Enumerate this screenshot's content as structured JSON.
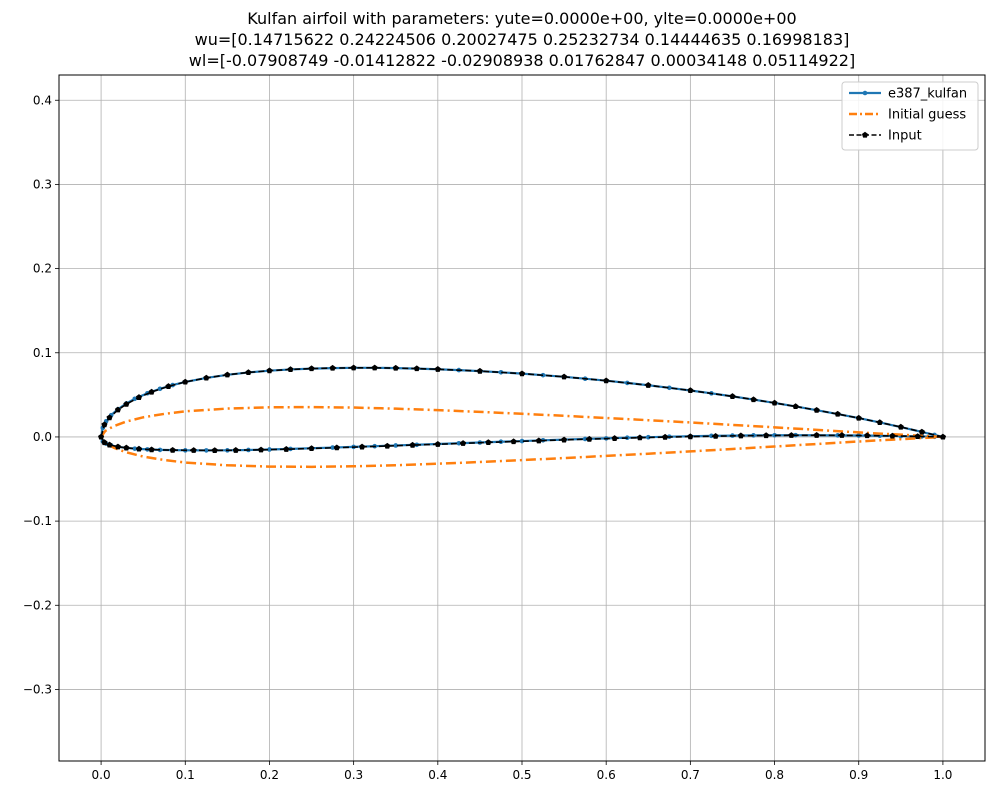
{
  "chart_data": {
    "type": "line",
    "title_lines": [
      "Kulfan airfoil with parameters: yute=0.0000e+00, ylte=0.0000e+00",
      "wu=[0.14715622 0.24224506 0.20027475 0.25232734 0.14444635 0.16998183]",
      "wl=[-0.07908749 -0.01412822 -0.02908938  0.01762847  0.00034148  0.05114922]"
    ],
    "xlabel": "",
    "ylabel": "",
    "xlim": [
      -0.05,
      1.05
    ],
    "ylim": [
      -0.385,
      0.43
    ],
    "x_ticks": [
      0.0,
      0.1,
      0.2,
      0.3,
      0.4,
      0.5,
      0.6,
      0.7,
      0.8,
      0.9,
      1.0
    ],
    "x_tick_labels": [
      "0.0",
      "0.1",
      "0.2",
      "0.3",
      "0.4",
      "0.5",
      "0.6",
      "0.7",
      "0.8",
      "0.9",
      "1.0"
    ],
    "y_ticks": [
      -0.3,
      -0.2,
      -0.1,
      0.0,
      0.1,
      0.2,
      0.3,
      0.4
    ],
    "y_tick_labels": [
      "−0.3",
      "−0.2",
      "−0.1",
      "0.0",
      "0.1",
      "0.2",
      "0.3",
      "0.4"
    ],
    "grid": true,
    "legend_position": "top-right",
    "series": [
      {
        "name": "e387_kulfan",
        "color": "#1f77b4",
        "style": "solid-line-with-dot-markers",
        "x": [
          1.0,
          0.99,
          0.975,
          0.95,
          0.925,
          0.9,
          0.875,
          0.85,
          0.825,
          0.8,
          0.775,
          0.75,
          0.725,
          0.7,
          0.675,
          0.65,
          0.625,
          0.6,
          0.575,
          0.55,
          0.525,
          0.5,
          0.475,
          0.45,
          0.425,
          0.4,
          0.375,
          0.35,
          0.325,
          0.3,
          0.275,
          0.25,
          0.225,
          0.2,
          0.175,
          0.15,
          0.125,
          0.1,
          0.085,
          0.07,
          0.055,
          0.04,
          0.03,
          0.02,
          0.012,
          0.006,
          0.002,
          0.0,
          0.002,
          0.006,
          0.012,
          0.02,
          0.03,
          0.04,
          0.055,
          0.07,
          0.085,
          0.1,
          0.125,
          0.15,
          0.175,
          0.2,
          0.225,
          0.25,
          0.275,
          0.3,
          0.325,
          0.35,
          0.375,
          0.4,
          0.425,
          0.45,
          0.475,
          0.5,
          0.525,
          0.55,
          0.575,
          0.6,
          0.625,
          0.65,
          0.675,
          0.7,
          0.725,
          0.75,
          0.775,
          0.8,
          0.825,
          0.85,
          0.875,
          0.9,
          0.925,
          0.95,
          0.975,
          0.99,
          1.0
        ],
        "y": [
          0.0,
          0.0024,
          0.006,
          0.0118,
          0.0172,
          0.0224,
          0.0272,
          0.0318,
          0.0362,
          0.0404,
          0.0444,
          0.0482,
          0.0518,
          0.0552,
          0.0584,
          0.0614,
          0.0642,
          0.0668,
          0.0692,
          0.0714,
          0.0734,
          0.0752,
          0.0768,
          0.0782,
          0.0794,
          0.0804,
          0.0812,
          0.0818,
          0.0821,
          0.0821,
          0.0818,
          0.0812,
          0.0802,
          0.0787,
          0.0766,
          0.0738,
          0.0701,
          0.0653,
          0.0616,
          0.0572,
          0.0519,
          0.0453,
          0.0398,
          0.0329,
          0.0259,
          0.0186,
          0.0108,
          0.0,
          -0.0052,
          -0.0079,
          -0.0101,
          -0.0117,
          -0.013,
          -0.0139,
          -0.0148,
          -0.0154,
          -0.0157,
          -0.0159,
          -0.016,
          -0.0159,
          -0.0155,
          -0.0149,
          -0.0142,
          -0.0134,
          -0.0126,
          -0.0118,
          -0.011,
          -0.0101,
          -0.0093,
          -0.0084,
          -0.0075,
          -0.0066,
          -0.0057,
          -0.0049,
          -0.004,
          -0.0032,
          -0.0024,
          -0.0017,
          -0.0009,
          -0.0003,
          0.0003,
          0.0008,
          0.0013,
          0.0016,
          0.0019,
          0.002,
          0.0021,
          0.002,
          0.0019,
          0.0017,
          0.0014,
          0.001,
          0.0006,
          0.0002,
          0.0
        ]
      },
      {
        "name": "Initial guess",
        "color": "#ff7f0e",
        "style": "dash-dot-line",
        "x": [
          1.0,
          0.975,
          0.95,
          0.925,
          0.9,
          0.85,
          0.8,
          0.75,
          0.7,
          0.65,
          0.6,
          0.55,
          0.5,
          0.45,
          0.4,
          0.35,
          0.3,
          0.25,
          0.2,
          0.15,
          0.1,
          0.075,
          0.05,
          0.03,
          0.015,
          0.005,
          0.0,
          0.005,
          0.015,
          0.03,
          0.05,
          0.075,
          0.1,
          0.15,
          0.2,
          0.25,
          0.3,
          0.35,
          0.4,
          0.45,
          0.5,
          0.55,
          0.6,
          0.65,
          0.7,
          0.75,
          0.8,
          0.85,
          0.9,
          0.925,
          0.95,
          0.975,
          1.0
        ],
        "y": [
          0.0,
          0.0013,
          0.0027,
          0.004,
          0.0054,
          0.0084,
          0.0114,
          0.0143,
          0.0172,
          0.0199,
          0.0225,
          0.0251,
          0.0275,
          0.0298,
          0.0318,
          0.0336,
          0.0349,
          0.0355,
          0.0352,
          0.0337,
          0.0304,
          0.0274,
          0.0233,
          0.0183,
          0.0128,
          0.0071,
          0.0,
          -0.0071,
          -0.0128,
          -0.0183,
          -0.0233,
          -0.0274,
          -0.0304,
          -0.0337,
          -0.0352,
          -0.0355,
          -0.0349,
          -0.0336,
          -0.0318,
          -0.0298,
          -0.0275,
          -0.0251,
          -0.0225,
          -0.0199,
          -0.0172,
          -0.0143,
          -0.0114,
          -0.0084,
          -0.0054,
          -0.004,
          -0.0027,
          -0.0013,
          0.0
        ]
      },
      {
        "name": "Input",
        "color": "#000000",
        "style": "dashed-line-with-pentagon-markers",
        "x": [
          1.0,
          0.975,
          0.95,
          0.925,
          0.9,
          0.875,
          0.85,
          0.825,
          0.8,
          0.775,
          0.75,
          0.7,
          0.65,
          0.6,
          0.55,
          0.5,
          0.45,
          0.4,
          0.375,
          0.35,
          0.325,
          0.3,
          0.275,
          0.25,
          0.225,
          0.2,
          0.175,
          0.15,
          0.125,
          0.1,
          0.08,
          0.06,
          0.045,
          0.03,
          0.02,
          0.01,
          0.004,
          0.0,
          0.004,
          0.01,
          0.02,
          0.03,
          0.045,
          0.06,
          0.085,
          0.11,
          0.135,
          0.16,
          0.19,
          0.22,
          0.25,
          0.28,
          0.31,
          0.34,
          0.37,
          0.4,
          0.43,
          0.46,
          0.49,
          0.52,
          0.55,
          0.58,
          0.61,
          0.64,
          0.67,
          0.7,
          0.73,
          0.76,
          0.79,
          0.82,
          0.85,
          0.88,
          0.91,
          0.94,
          0.97,
          1.0
        ],
        "y": [
          0.0,
          0.006,
          0.0118,
          0.0172,
          0.0224,
          0.0272,
          0.0318,
          0.0362,
          0.0404,
          0.0444,
          0.0482,
          0.0552,
          0.0614,
          0.0668,
          0.0714,
          0.0752,
          0.0782,
          0.0804,
          0.0812,
          0.0818,
          0.0821,
          0.0821,
          0.0818,
          0.0812,
          0.0802,
          0.0787,
          0.0766,
          0.0738,
          0.0701,
          0.0653,
          0.0601,
          0.0534,
          0.047,
          0.0389,
          0.0322,
          0.0229,
          0.0146,
          0.0,
          -0.0066,
          -0.0094,
          -0.0117,
          -0.013,
          -0.0143,
          -0.0151,
          -0.0157,
          -0.0159,
          -0.016,
          -0.0158,
          -0.0153,
          -0.0146,
          -0.0137,
          -0.0128,
          -0.0118,
          -0.0108,
          -0.0097,
          -0.0087,
          -0.0076,
          -0.0065,
          -0.0055,
          -0.0045,
          -0.0035,
          -0.0026,
          -0.0017,
          -0.0009,
          -0.0002,
          0.0004,
          0.0009,
          0.0014,
          0.0017,
          0.0019,
          0.002,
          0.0019,
          0.0016,
          0.0012,
          0.0006,
          0.0
        ]
      }
    ]
  }
}
